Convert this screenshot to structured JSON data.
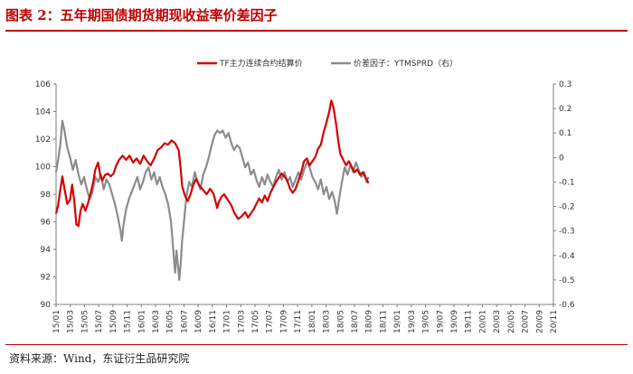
{
  "header": {
    "title": "图表 2：五年期国债期货期现收益率价差因子"
  },
  "footer": {
    "source": "资料来源：Wind，东证衍生品研究院"
  },
  "colors": {
    "title": "#c00000",
    "series_left": "#d40000",
    "series_right": "#8c8c8c",
    "axis": "#7f7f7f"
  },
  "chart_data": {
    "type": "line",
    "title": "",
    "legend_position": "top",
    "grid": false,
    "x_categories": [
      "15/01",
      "15/03",
      "15/05",
      "15/07",
      "15/09",
      "15/11",
      "16/01",
      "16/03",
      "16/05",
      "16/07",
      "16/09",
      "16/11",
      "17/01",
      "17/03",
      "17/05",
      "17/07",
      "17/09",
      "17/11",
      "18/01",
      "18/03",
      "18/05",
      "18/07",
      "18/09",
      "18/11",
      "19/01",
      "19/03",
      "19/05",
      "19/07",
      "19/09",
      "19/11",
      "20/01",
      "20/03",
      "20/05",
      "20/07",
      "20/09",
      "20/11"
    ],
    "y_left": {
      "range": [
        90,
        106
      ],
      "ticks": [
        "90",
        "92",
        "94",
        "96",
        "98",
        "100",
        "102",
        "104",
        "106"
      ]
    },
    "y_right": {
      "range": [
        -0.6,
        0.3
      ],
      "ticks": [
        "-0.6",
        "-0.5",
        "-0.4",
        "-0.3",
        "-0.2",
        "-0.1",
        "0",
        "0.1",
        "0.2",
        "0.3"
      ]
    },
    "series": [
      {
        "name": "TF主力连续合约结算价",
        "axis": "left",
        "points": [
          [
            0,
            96.6
          ],
          [
            0.3,
            97.2
          ],
          [
            0.6,
            98.3
          ],
          [
            0.9,
            99.3
          ],
          [
            1.2,
            98.4
          ],
          [
            1.6,
            97.3
          ],
          [
            2,
            97.6
          ],
          [
            2.3,
            98.7
          ],
          [
            2.6,
            97.5
          ],
          [
            2.9,
            95.8
          ],
          [
            3.2,
            95.7
          ],
          [
            3.5,
            96.8
          ],
          [
            3.8,
            97.3
          ],
          [
            4.2,
            96.8
          ],
          [
            4.6,
            97.4
          ],
          [
            5,
            98.2
          ],
          [
            5.3,
            98.9
          ],
          [
            5.6,
            99.8
          ],
          [
            6,
            100.3
          ],
          [
            6.3,
            99.4
          ],
          [
            6.6,
            99.0
          ],
          [
            7,
            99.4
          ],
          [
            7.4,
            99.5
          ],
          [
            7.8,
            99.3
          ],
          [
            8.2,
            99.5
          ],
          [
            8.6,
            100.1
          ],
          [
            9,
            100.5
          ],
          [
            9.5,
            100.8
          ],
          [
            10,
            100.5
          ],
          [
            10.5,
            100.8
          ],
          [
            11,
            100.3
          ],
          [
            11.5,
            100.6
          ],
          [
            12,
            100.2
          ],
          [
            12.5,
            100.8
          ],
          [
            13,
            100.4
          ],
          [
            13.5,
            100.1
          ],
          [
            14,
            100.6
          ],
          [
            14.5,
            101.2
          ],
          [
            15,
            101.4
          ],
          [
            15.5,
            101.7
          ],
          [
            16,
            101.6
          ],
          [
            16.5,
            101.9
          ],
          [
            17,
            101.7
          ],
          [
            17.5,
            101.2
          ],
          [
            17.8,
            99.8
          ],
          [
            18,
            98.6
          ],
          [
            18.4,
            97.9
          ],
          [
            18.8,
            97.5
          ],
          [
            19.2,
            98.0
          ],
          [
            19.6,
            98.7
          ],
          [
            20,
            99.1
          ],
          [
            20.5,
            98.6
          ],
          [
            21,
            98.3
          ],
          [
            21.5,
            98.0
          ],
          [
            22,
            98.4
          ],
          [
            22.5,
            98.0
          ],
          [
            22.8,
            97.4
          ],
          [
            23,
            97.0
          ],
          [
            23.2,
            97.4
          ],
          [
            23.6,
            97.8
          ],
          [
            24,
            98.0
          ],
          [
            24.5,
            97.6
          ],
          [
            25,
            97.2
          ],
          [
            25.5,
            96.6
          ],
          [
            26,
            96.2
          ],
          [
            26.5,
            96.4
          ],
          [
            27,
            96.7
          ],
          [
            27.4,
            96.3
          ],
          [
            27.8,
            96.6
          ],
          [
            28.2,
            96.9
          ],
          [
            28.6,
            97.3
          ],
          [
            29,
            97.7
          ],
          [
            29.4,
            97.4
          ],
          [
            29.8,
            97.9
          ],
          [
            30.2,
            97.5
          ],
          [
            30.6,
            98.1
          ],
          [
            31,
            98.5
          ],
          [
            31.4,
            98.9
          ],
          [
            31.8,
            99.2
          ],
          [
            32.2,
            99.5
          ],
          [
            32.6,
            99.3
          ],
          [
            33,
            99.0
          ],
          [
            33.4,
            98.4
          ],
          [
            33.8,
            98.1
          ],
          [
            34.2,
            98.4
          ],
          [
            34.6,
            99.0
          ],
          [
            35,
            99.6
          ],
          [
            35.4,
            100.4
          ],
          [
            35.8,
            100.6
          ],
          [
            36.2,
            100.1
          ],
          [
            36.6,
            100.4
          ],
          [
            37,
            100.7
          ],
          [
            37.4,
            101.3
          ],
          [
            37.8,
            101.6
          ],
          [
            38.2,
            102.5
          ],
          [
            38.6,
            103.2
          ],
          [
            39,
            104.0
          ],
          [
            39.3,
            104.8
          ],
          [
            39.6,
            104.3
          ],
          [
            40,
            103.0
          ],
          [
            40.3,
            101.8
          ],
          [
            40.6,
            100.9
          ],
          [
            41,
            100.5
          ],
          [
            41.4,
            100.1
          ],
          [
            41.8,
            100.4
          ],
          [
            42.2,
            100.0
          ],
          [
            42.6,
            99.6
          ],
          [
            43,
            99.8
          ],
          [
            43.4,
            99.4
          ],
          [
            43.8,
            99.6
          ],
          [
            44.2,
            99.2
          ],
          [
            44.6,
            98.8
          ]
        ]
      },
      {
        "name": "价差因子：YTMSPRD（右）",
        "axis": "right",
        "points": [
          [
            0,
            -0.06
          ],
          [
            0.3,
            -0.01
          ],
          [
            0.6,
            0.05
          ],
          [
            0.9,
            0.15
          ],
          [
            1.2,
            0.11
          ],
          [
            1.6,
            0.04
          ],
          [
            2,
            0.0
          ],
          [
            2.4,
            -0.05
          ],
          [
            2.8,
            -0.01
          ],
          [
            3.2,
            -0.07
          ],
          [
            3.6,
            -0.11
          ],
          [
            4,
            -0.08
          ],
          [
            4.4,
            -0.13
          ],
          [
            4.8,
            -0.17
          ],
          [
            5.2,
            -0.14
          ],
          [
            5.6,
            -0.08
          ],
          [
            6,
            -0.1
          ],
          [
            6.4,
            -0.07
          ],
          [
            6.8,
            -0.13
          ],
          [
            7.2,
            -0.09
          ],
          [
            7.6,
            -0.11
          ],
          [
            8,
            -0.15
          ],
          [
            8.4,
            -0.19
          ],
          [
            8.8,
            -0.24
          ],
          [
            9.2,
            -0.3
          ],
          [
            9.4,
            -0.34
          ],
          [
            9.6,
            -0.28
          ],
          [
            10,
            -0.21
          ],
          [
            10.4,
            -0.17
          ],
          [
            10.8,
            -0.14
          ],
          [
            11.2,
            -0.11
          ],
          [
            11.6,
            -0.08
          ],
          [
            12,
            -0.13
          ],
          [
            12.4,
            -0.1
          ],
          [
            12.8,
            -0.06
          ],
          [
            13.2,
            -0.04
          ],
          [
            13.6,
            -0.09
          ],
          [
            14,
            -0.06
          ],
          [
            14.4,
            -0.11
          ],
          [
            14.8,
            -0.08
          ],
          [
            15.2,
            -0.12
          ],
          [
            15.6,
            -0.15
          ],
          [
            16,
            -0.19
          ],
          [
            16.4,
            -0.26
          ],
          [
            16.6,
            -0.33
          ],
          [
            16.8,
            -0.4
          ],
          [
            17,
            -0.47
          ],
          [
            17.2,
            -0.38
          ],
          [
            17.4,
            -0.44
          ],
          [
            17.6,
            -0.5
          ],
          [
            17.8,
            -0.43
          ],
          [
            18,
            -0.34
          ],
          [
            18.3,
            -0.25
          ],
          [
            18.6,
            -0.16
          ],
          [
            19,
            -0.1
          ],
          [
            19.4,
            -0.12
          ],
          [
            19.8,
            -0.06
          ],
          [
            20.2,
            -0.1
          ],
          [
            20.6,
            -0.13
          ],
          [
            21,
            -0.07
          ],
          [
            21.4,
            -0.04
          ],
          [
            21.8,
            0.0
          ],
          [
            22.2,
            0.05
          ],
          [
            22.6,
            0.09
          ],
          [
            23,
            0.11
          ],
          [
            23.4,
            0.1
          ],
          [
            23.8,
            0.11
          ],
          [
            24.2,
            0.08
          ],
          [
            24.6,
            0.1
          ],
          [
            25,
            0.06
          ],
          [
            25.4,
            0.03
          ],
          [
            25.8,
            0.05
          ],
          [
            26.2,
            0.04
          ],
          [
            26.6,
            0.0
          ],
          [
            27,
            -0.04
          ],
          [
            27.4,
            -0.02
          ],
          [
            27.8,
            -0.07
          ],
          [
            28.2,
            -0.05
          ],
          [
            28.6,
            -0.09
          ],
          [
            29,
            -0.12
          ],
          [
            29.4,
            -0.08
          ],
          [
            29.8,
            -0.11
          ],
          [
            30.2,
            -0.07
          ],
          [
            30.6,
            -0.1
          ],
          [
            31,
            -0.12
          ],
          [
            31.4,
            -0.08
          ],
          [
            31.8,
            -0.05
          ],
          [
            32.2,
            -0.09
          ],
          [
            32.6,
            -0.06
          ],
          [
            33,
            -0.1
          ],
          [
            33.4,
            -0.08
          ],
          [
            33.8,
            -0.12
          ],
          [
            34.2,
            -0.09
          ],
          [
            34.6,
            -0.06
          ],
          [
            35,
            -0.09
          ],
          [
            35.4,
            -0.05
          ],
          [
            35.8,
            -0.02
          ],
          [
            36.2,
            -0.04
          ],
          [
            36.6,
            -0.08
          ],
          [
            37,
            -0.1
          ],
          [
            37.4,
            -0.13
          ],
          [
            37.8,
            -0.09
          ],
          [
            38.2,
            -0.15
          ],
          [
            38.6,
            -0.12
          ],
          [
            39,
            -0.17
          ],
          [
            39.4,
            -0.14
          ],
          [
            39.8,
            -0.18
          ],
          [
            40.1,
            -0.23
          ],
          [
            40.4,
            -0.17
          ],
          [
            40.8,
            -0.1
          ],
          [
            41.2,
            -0.04
          ],
          [
            41.6,
            -0.07
          ],
          [
            42,
            -0.03
          ],
          [
            42.4,
            -0.06
          ],
          [
            42.8,
            -0.02
          ],
          [
            43.2,
            -0.05
          ],
          [
            43.6,
            -0.08
          ],
          [
            44,
            -0.06
          ],
          [
            44.3,
            -0.1
          ],
          [
            44.6,
            -0.08
          ]
        ]
      }
    ]
  }
}
